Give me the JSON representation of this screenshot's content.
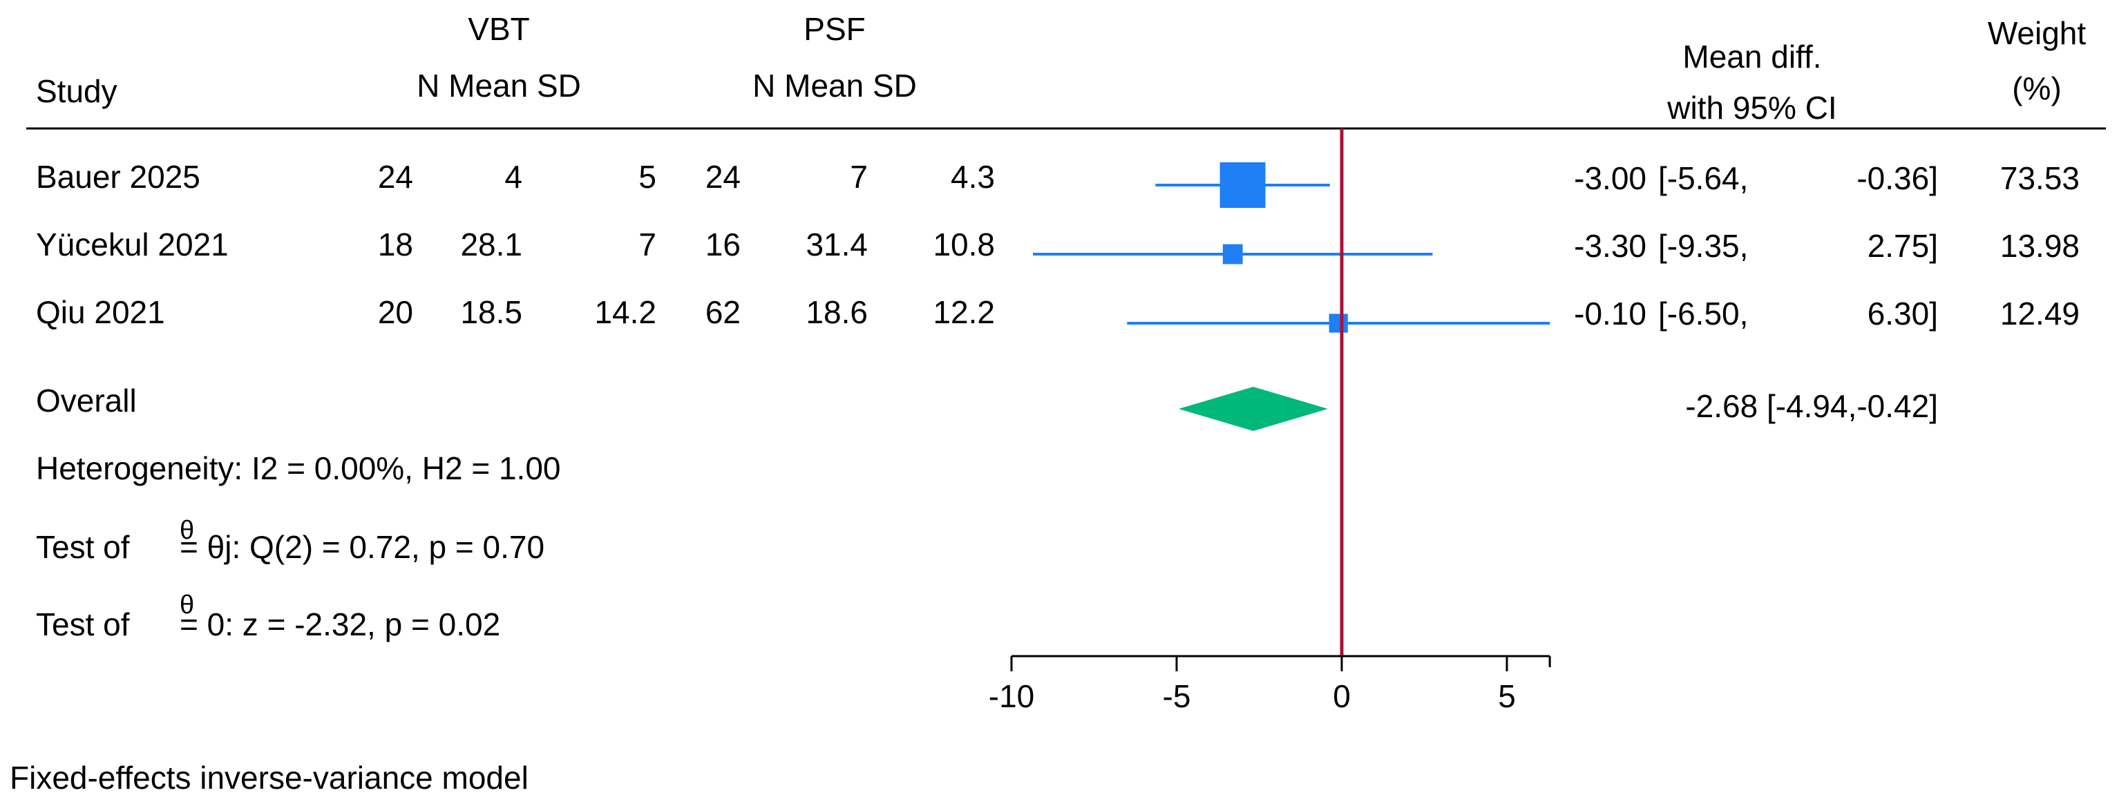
{
  "chart_data": {
    "type": "forest",
    "headers": {
      "study": "Study",
      "group1": "VBT",
      "group1_cols": "N Mean SD",
      "group2": "PSF",
      "group2_cols": "N Mean SD",
      "effect_line1": "Mean diff.",
      "effect_line2": "with 95% CI",
      "weight_line1": "Weight",
      "weight_line2": "(%)"
    },
    "studies": [
      {
        "study": "Bauer 2025",
        "n1": "24",
        "mean1": "4",
        "sd1": "5",
        "n2": "24",
        "mean2": "7",
        "sd2": "4.3",
        "md": -3.0,
        "lo": -5.64,
        "hi": -0.36,
        "weight": 73.53,
        "md_text": "-3.00",
        "ci_lo_text": "[-5.64,",
        "ci_hi_text": "-0.36]",
        "weight_text": "73.53"
      },
      {
        "study": "Yücekul 2021",
        "n1": "18",
        "mean1": "28.1",
        "sd1": "7",
        "n2": "16",
        "mean2": "31.4",
        "sd2": "10.8",
        "md": -3.3,
        "lo": -9.35,
        "hi": 2.75,
        "weight": 13.98,
        "md_text": "-3.30",
        "ci_lo_text": "[-9.35,",
        "ci_hi_text": "2.75]",
        "weight_text": "13.98"
      },
      {
        "study": "Qiu 2021",
        "n1": "20",
        "mean1": "18.5",
        "sd1": "14.2",
        "n2": "62",
        "mean2": "18.6",
        "sd2": "12.2",
        "md": -0.1,
        "lo": -6.5,
        "hi": 6.3,
        "weight": 12.49,
        "md_text": "-0.10",
        "ci_lo_text": "[-6.50,",
        "ci_hi_text": "6.30]",
        "weight_text": "12.49"
      }
    ],
    "overall": {
      "label": "Overall",
      "md": -2.68,
      "lo": -4.94,
      "hi": -0.42,
      "text": "-2.68 [-4.94,-0.42]"
    },
    "stats": {
      "heterogeneity": "Heterogeneity: I2 = 0.00%, H2 = 1.00",
      "test_homog_prefix": "Test of",
      "test_homog_theta": "θ",
      "test_homog_rest": "= θj: Q(2) = 0.72, p = 0.70",
      "test_zero_prefix": "Test of",
      "test_zero_theta": "θ",
      "test_zero_rest": "= 0: z = -2.32, p = 0.02"
    },
    "axis": {
      "xlim": [
        -10,
        6.3
      ],
      "ticks": [
        -10,
        -5,
        0,
        5
      ],
      "null_line": 0
    },
    "model_note": "Fixed-effects inverse-variance model",
    "colors": {
      "study": "#1f7ff5",
      "overall": "#00b87a",
      "null_line": "#a8123a",
      "axis": "#000000"
    }
  }
}
